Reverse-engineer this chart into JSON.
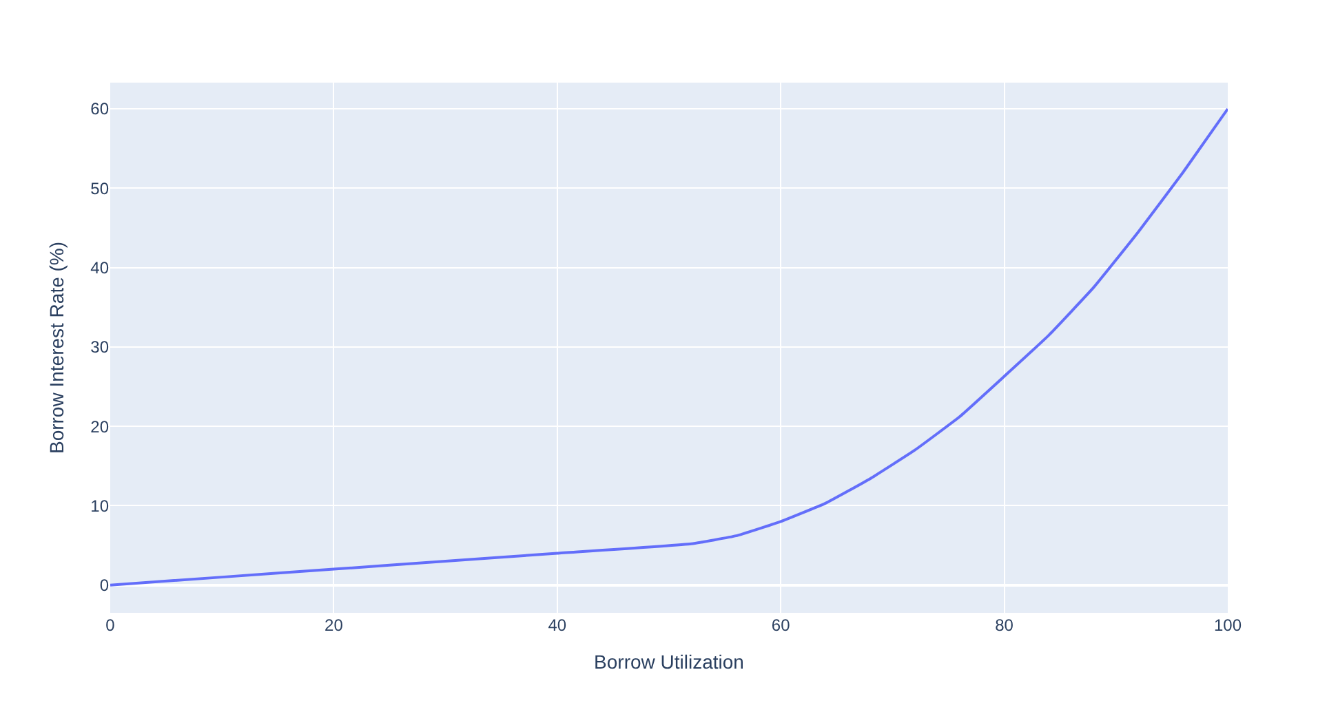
{
  "chart_data": {
    "type": "line",
    "xlabel": "Borrow Utilization",
    "ylabel": "Borrow Interest Rate (%)",
    "x": [
      0,
      10,
      20,
      30,
      40,
      52,
      56,
      60,
      64,
      68,
      72,
      76,
      80,
      84,
      88,
      92,
      96,
      100
    ],
    "series": [
      {
        "color": "#636efa",
        "values": [
          0,
          1,
          2,
          3,
          4,
          5.2,
          6.2,
          8,
          10.3,
          13.4,
          17,
          21.2,
          26.3,
          31.5,
          37.5,
          44.5,
          52,
          60
        ]
      }
    ],
    "xlim": [
      0,
      100
    ],
    "xticks": [
      0,
      20,
      40,
      60,
      80,
      100
    ],
    "ylim": [
      -3.5,
      63.3
    ],
    "yticks": [
      0,
      10,
      20,
      30,
      40,
      50,
      60
    ],
    "grid": true,
    "legend": false,
    "line_style": "solid",
    "marker": "none"
  }
}
